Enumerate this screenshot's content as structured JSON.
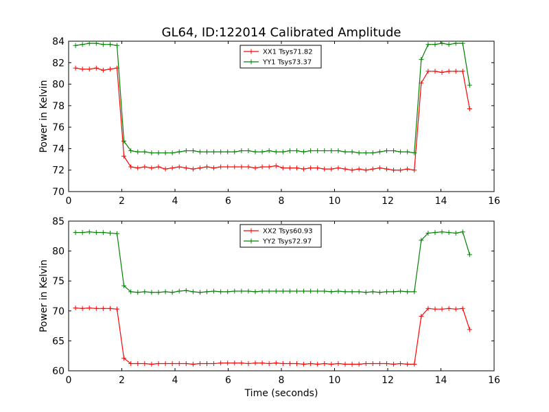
{
  "figure": {
    "title": "GL64, ID:122014 Calibrated Amplitude",
    "background": "#ffffff"
  },
  "chart_data": [
    {
      "type": "line",
      "title": "GL64, ID:122014 Calibrated Amplitude",
      "xlabel": "",
      "ylabel": "Power in Kelvin",
      "xlim": [
        0,
        16
      ],
      "ylim": [
        70,
        84
      ],
      "xticks": [
        0,
        2,
        4,
        6,
        8,
        10,
        12,
        14,
        16
      ],
      "yticks": [
        70,
        72,
        74,
        76,
        78,
        80,
        82,
        84
      ],
      "grid": false,
      "legend_position": "top-center",
      "x": [
        0.26,
        0.52,
        0.78,
        1.04,
        1.3,
        1.56,
        1.82,
        2.08,
        2.34,
        2.6,
        2.86,
        3.12,
        3.38,
        3.64,
        3.9,
        4.16,
        4.42,
        4.68,
        4.94,
        5.2,
        5.46,
        5.72,
        5.98,
        6.24,
        6.5,
        6.76,
        7.02,
        7.28,
        7.54,
        7.8,
        8.06,
        8.32,
        8.58,
        8.84,
        9.1,
        9.36,
        9.62,
        9.88,
        10.14,
        10.4,
        10.66,
        10.92,
        11.18,
        11.44,
        11.7,
        11.96,
        12.22,
        12.48,
        12.74,
        13.0,
        13.26,
        13.52,
        13.78,
        14.04,
        14.3,
        14.56,
        14.82,
        15.08
      ],
      "series": [
        {
          "name": "XX1 Tsys71.82",
          "color": "#ff0000",
          "values": [
            81.5,
            81.4,
            81.4,
            81.5,
            81.3,
            81.4,
            81.5,
            73.3,
            72.3,
            72.2,
            72.3,
            72.2,
            72.3,
            72.1,
            72.2,
            72.3,
            72.2,
            72.1,
            72.2,
            72.3,
            72.2,
            72.3,
            72.3,
            72.3,
            72.3,
            72.3,
            72.2,
            72.3,
            72.3,
            72.4,
            72.2,
            72.2,
            72.2,
            72.1,
            72.2,
            72.2,
            72.1,
            72.1,
            72.2,
            72.1,
            72.0,
            72.1,
            72.0,
            72.1,
            72.2,
            72.1,
            72.0,
            72.0,
            72.1,
            72.0,
            80.1,
            81.2,
            81.2,
            81.1,
            81.2,
            81.2,
            81.2,
            77.7
          ]
        },
        {
          "name": "YY1 Tsys73.37",
          "color": "#008000",
          "values": [
            83.6,
            83.7,
            83.8,
            83.8,
            83.7,
            83.7,
            83.6,
            74.7,
            73.8,
            73.7,
            73.7,
            73.6,
            73.6,
            73.6,
            73.6,
            73.7,
            73.8,
            73.8,
            73.7,
            73.7,
            73.7,
            73.7,
            73.7,
            73.7,
            73.8,
            73.8,
            73.7,
            73.7,
            73.8,
            73.7,
            73.7,
            73.8,
            73.8,
            73.7,
            73.8,
            73.8,
            73.8,
            73.8,
            73.8,
            73.7,
            73.7,
            73.6,
            73.6,
            73.6,
            73.7,
            73.8,
            73.8,
            73.7,
            73.7,
            73.6,
            82.3,
            83.7,
            83.7,
            83.8,
            83.7,
            83.8,
            83.8,
            79.9
          ]
        }
      ]
    },
    {
      "type": "line",
      "title": "",
      "xlabel": "Time (seconds)",
      "ylabel": "Power in Kelvin",
      "xlim": [
        0,
        16
      ],
      "ylim": [
        60,
        85
      ],
      "xticks": [
        0,
        2,
        4,
        6,
        8,
        10,
        12,
        14,
        16
      ],
      "yticks": [
        60,
        65,
        70,
        75,
        80,
        85
      ],
      "grid": false,
      "legend_position": "top-center",
      "x": [
        0.26,
        0.52,
        0.78,
        1.04,
        1.3,
        1.56,
        1.82,
        2.08,
        2.34,
        2.6,
        2.86,
        3.12,
        3.38,
        3.64,
        3.9,
        4.16,
        4.42,
        4.68,
        4.94,
        5.2,
        5.46,
        5.72,
        5.98,
        6.24,
        6.5,
        6.76,
        7.02,
        7.28,
        7.54,
        7.8,
        8.06,
        8.32,
        8.58,
        8.84,
        9.1,
        9.36,
        9.62,
        9.88,
        10.14,
        10.4,
        10.66,
        10.92,
        11.18,
        11.44,
        11.7,
        11.96,
        12.22,
        12.48,
        12.74,
        13.0,
        13.26,
        13.52,
        13.78,
        14.04,
        14.3,
        14.56,
        14.82,
        15.08
      ],
      "series": [
        {
          "name": "XX2 Tsys60.93",
          "color": "#ff0000",
          "values": [
            70.5,
            70.4,
            70.5,
            70.4,
            70.4,
            70.4,
            70.3,
            62.1,
            61.2,
            61.2,
            61.2,
            61.1,
            61.2,
            61.2,
            61.2,
            61.2,
            61.2,
            61.1,
            61.2,
            61.2,
            61.2,
            61.3,
            61.3,
            61.3,
            61.3,
            61.2,
            61.3,
            61.3,
            61.2,
            61.3,
            61.2,
            61.2,
            61.2,
            61.1,
            61.2,
            61.1,
            61.2,
            61.1,
            61.2,
            61.1,
            61.1,
            61.1,
            61.2,
            61.2,
            61.2,
            61.2,
            61.1,
            61.2,
            61.1,
            61.1,
            69.1,
            70.4,
            70.3,
            70.3,
            70.4,
            70.3,
            70.4,
            66.9
          ]
        },
        {
          "name": "YY2 Tsys72.97",
          "color": "#008000",
          "values": [
            83.1,
            83.1,
            83.2,
            83.1,
            83.1,
            83.0,
            82.9,
            74.2,
            73.2,
            73.1,
            73.2,
            73.1,
            73.1,
            73.2,
            73.1,
            73.3,
            73.4,
            73.2,
            73.1,
            73.2,
            73.3,
            73.2,
            73.2,
            73.3,
            73.3,
            73.3,
            73.2,
            73.3,
            73.3,
            73.3,
            73.3,
            73.3,
            73.3,
            73.3,
            73.3,
            73.3,
            73.3,
            73.2,
            73.3,
            73.2,
            73.2,
            73.2,
            73.1,
            73.2,
            73.1,
            73.2,
            73.2,
            73.3,
            73.2,
            73.2,
            81.8,
            83.0,
            83.1,
            83.2,
            83.1,
            83.0,
            83.2,
            79.4
          ]
        }
      ]
    }
  ]
}
